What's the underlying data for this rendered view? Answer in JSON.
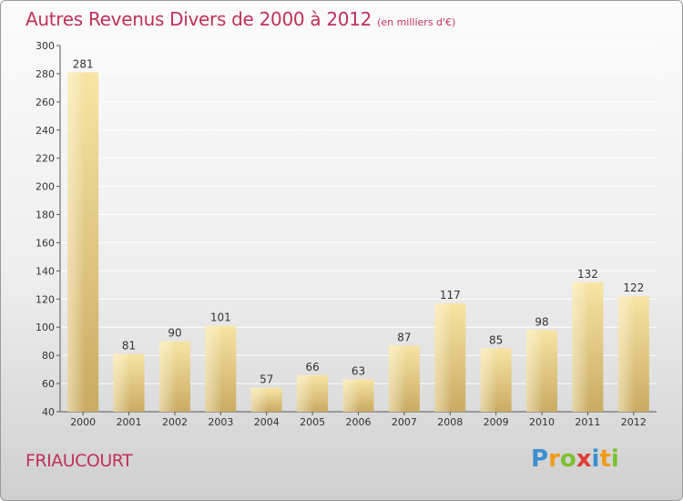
{
  "title": "Autres Revenus Divers de 2000 à 2012",
  "unit": "(en milliers d'€)",
  "commune": "FRIAUCOURT",
  "logo": {
    "letters": [
      "P",
      "r",
      "o",
      "x",
      "i",
      "t",
      "i"
    ]
  },
  "colors": {
    "title": "#c0305a",
    "bar_light": "#f7e2a0",
    "bar_dark": "#c8aa62",
    "grid": "#ffffff",
    "axis": "#555555"
  },
  "chart_data": {
    "type": "bar",
    "categories": [
      "2000",
      "2001",
      "2002",
      "2003",
      "2004",
      "2005",
      "2006",
      "2007",
      "2008",
      "2009",
      "2010",
      "2011",
      "2012"
    ],
    "values": [
      281,
      81,
      90,
      101,
      57,
      66,
      63,
      87,
      117,
      85,
      98,
      132,
      122
    ],
    "ylim": [
      40,
      300
    ],
    "yticks": [
      40,
      60,
      80,
      100,
      120,
      140,
      160,
      180,
      200,
      220,
      240,
      260,
      280,
      300
    ],
    "grid": true,
    "data_labels": true
  }
}
